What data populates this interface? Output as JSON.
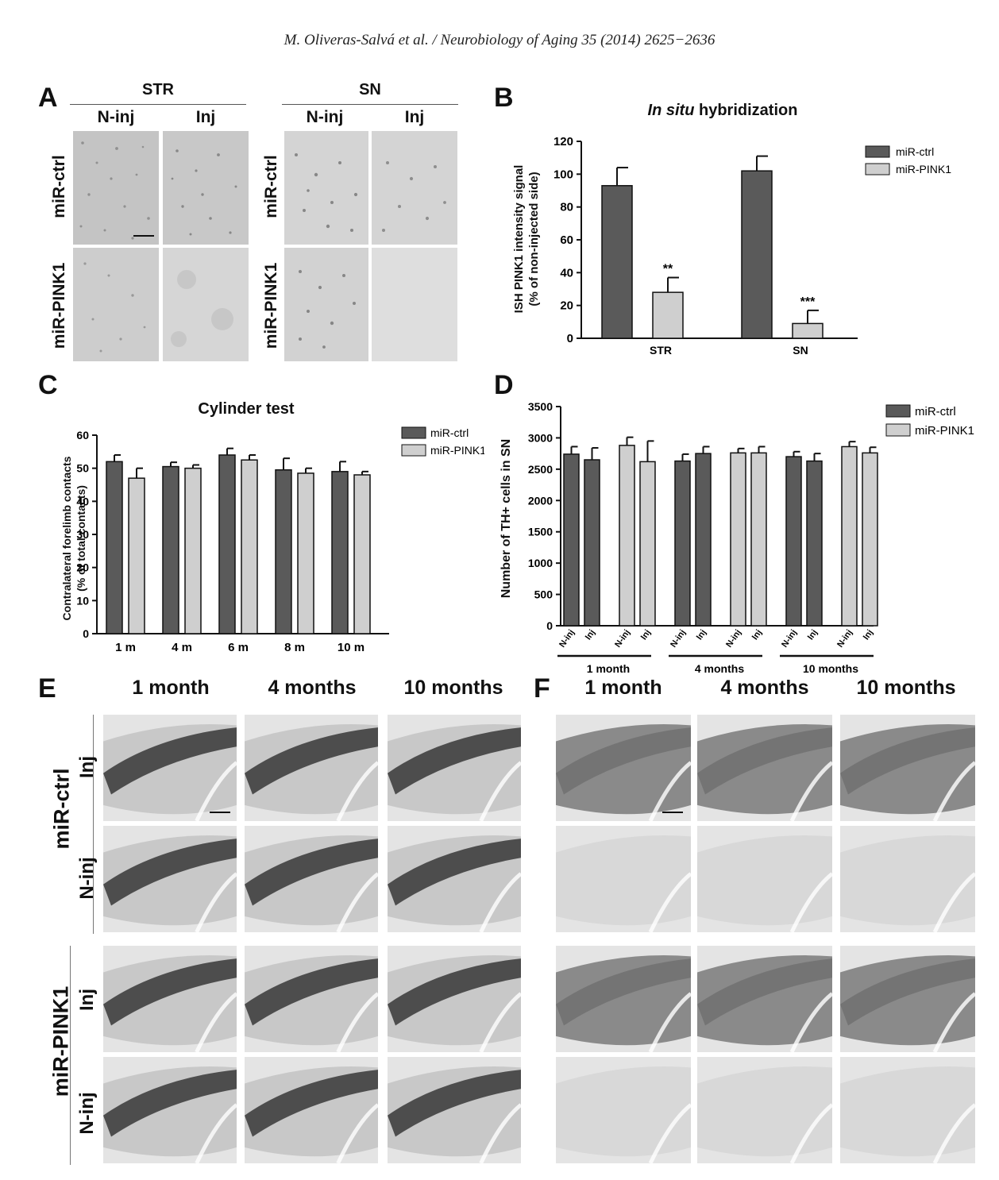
{
  "header": "M. Oliveras-Salvá et al. / Neurobiology of Aging 35 (2014) 2625−2636",
  "panelA": {
    "letter": "A",
    "groups": [
      "STR",
      "SN"
    ],
    "cols": [
      "N-inj",
      "Inj",
      "N-inj",
      "Inj"
    ],
    "rows": [
      "miR-ctrl",
      "miR-PINK1"
    ]
  },
  "panelB": {
    "letter": "B",
    "title_italic": "In situ",
    "title_rest": " hybridization",
    "ylabel1": "ISH PINK1 intensity signal",
    "ylabel2": "(% of non-injected side)",
    "yticks": [
      "0",
      "20",
      "40",
      "60",
      "80",
      "100",
      "120"
    ],
    "legend": [
      "miR-ctrl",
      "miR-PINK1"
    ],
    "significance": [
      "**",
      "***"
    ],
    "categories": [
      "STR",
      "SN"
    ]
  },
  "panelC": {
    "letter": "C",
    "title": "Cylinder test",
    "ylabel1": "Contralateral forelimb contacts",
    "ylabel2": "(% of total contacts)",
    "yticks": [
      "0",
      "10",
      "20",
      "30",
      "40",
      "50",
      "60"
    ],
    "legend": [
      "miR-ctrl",
      "miR-PINK1"
    ],
    "categories": [
      "1 m",
      "4 m",
      "6 m",
      "8 m",
      "10 m"
    ]
  },
  "panelD": {
    "letter": "D",
    "ylabel": "Number of TH+ cells in SN",
    "yticks": [
      "0",
      "500",
      "1000",
      "1500",
      "2000",
      "2500",
      "3000",
      "3500"
    ],
    "legend": [
      "miR-ctrl",
      "miR-PINK1"
    ],
    "barlabels": [
      "N-inj",
      "Inj"
    ],
    "groups": [
      "1 month",
      "4 months",
      "10 months"
    ]
  },
  "panelE": {
    "letter": "E",
    "cols": [
      "1 month",
      "4 months",
      "10 months"
    ],
    "groups": [
      "miR-ctrl",
      "miR-PINK1"
    ],
    "rows": [
      "Inj",
      "N-inj",
      "Inj",
      "N-inj"
    ]
  },
  "panelF": {
    "letter": "F",
    "cols": [
      "1 month",
      "4 months",
      "10 months"
    ]
  },
  "colors": {
    "ctrl": "#5a5a5a",
    "pink1": "#cfcfcf",
    "axis": "#111111"
  },
  "chart_data": [
    {
      "type": "bar",
      "title": "In situ hybridization",
      "ylabel": "ISH PINK1 intensity signal (% of non-injected side)",
      "categories": [
        "STR",
        "SN"
      ],
      "series": [
        {
          "name": "miR-ctrl",
          "values": [
            93,
            102
          ],
          "errors": [
            11,
            9
          ]
        },
        {
          "name": "miR-PINK1",
          "values": [
            28,
            9
          ],
          "errors": [
            9,
            8
          ]
        }
      ],
      "ylim": [
        0,
        120
      ],
      "annotations": [
        "**",
        "***"
      ]
    },
    {
      "type": "bar",
      "title": "Cylinder test",
      "ylabel": "Contralateral forelimb contacts (% of total contacts)",
      "categories": [
        "1 m",
        "4 m",
        "6 m",
        "8 m",
        "10 m"
      ],
      "series": [
        {
          "name": "miR-ctrl",
          "values": [
            52,
            50.5,
            54,
            49.5,
            49
          ],
          "errors": [
            2,
            1.3,
            2,
            3.5,
            3
          ]
        },
        {
          "name": "miR-PINK1",
          "values": [
            47,
            50,
            52.5,
            48.5,
            48
          ],
          "errors": [
            3,
            1,
            1.5,
            1.5,
            1
          ]
        }
      ],
      "ylim": [
        0,
        60
      ]
    },
    {
      "type": "bar",
      "ylabel": "Number of TH+ cells in SN",
      "categories": [
        "1 month",
        "4 months",
        "10 months"
      ],
      "bars": [
        {
          "group": "1 month",
          "series": "miR-ctrl",
          "label": "N-inj",
          "value": 2740,
          "error": 120
        },
        {
          "group": "1 month",
          "series": "miR-ctrl",
          "label": "Inj",
          "value": 2650,
          "error": 190
        },
        {
          "group": "1 month",
          "series": "miR-PINK1",
          "label": "N-inj",
          "value": 2880,
          "error": 130
        },
        {
          "group": "1 month",
          "series": "miR-PINK1",
          "label": "Inj",
          "value": 2620,
          "error": 330
        },
        {
          "group": "4 months",
          "series": "miR-ctrl",
          "label": "N-inj",
          "value": 2630,
          "error": 110
        },
        {
          "group": "4 months",
          "series": "miR-ctrl",
          "label": "Inj",
          "value": 2750,
          "error": 110
        },
        {
          "group": "4 months",
          "series": "miR-PINK1",
          "label": "N-inj",
          "value": 2760,
          "error": 70
        },
        {
          "group": "4 months",
          "series": "miR-PINK1",
          "label": "Inj",
          "value": 2760,
          "error": 100
        },
        {
          "group": "10 months",
          "series": "miR-ctrl",
          "label": "N-inj",
          "value": 2700,
          "error": 80
        },
        {
          "group": "10 months",
          "series": "miR-ctrl",
          "label": "Inj",
          "value": 2630,
          "error": 120
        },
        {
          "group": "10 months",
          "series": "miR-PINK1",
          "label": "N-inj",
          "value": 2860,
          "error": 80
        },
        {
          "group": "10 months",
          "series": "miR-PINK1",
          "label": "Inj",
          "value": 2760,
          "error": 90
        }
      ],
      "ylim": [
        0,
        3500
      ]
    }
  ]
}
